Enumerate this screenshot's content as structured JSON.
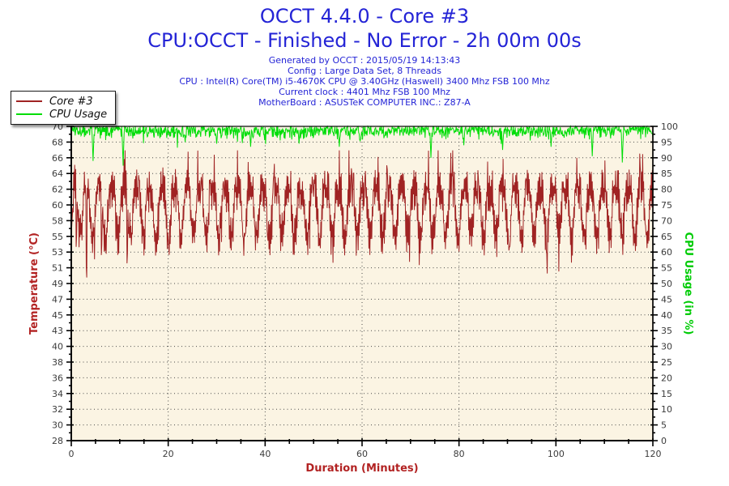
{
  "header": {
    "title": "OCCT 4.4.0 - Core #3",
    "subtitle": "CPU:OCCT - Finished - No Error - 2h 00m 00s",
    "title_color": "#2424d6",
    "info_color": "#2424d6",
    "info_lines": [
      "Generated by OCCT : 2015/05/19 14:13:43",
      "Config : Large Data Set, 8 Threads",
      "CPU : Intel(R) Core(TM) i5-4670K CPU @ 3.40GHz (Haswell) 3400 Mhz FSB 100 Mhz",
      "Current clock : 4401 Mhz FSB 100 Mhz",
      "MotherBoard : ASUSTeK COMPUTER INC.: Z87-A"
    ]
  },
  "legend": {
    "items": [
      {
        "label": "Core #3",
        "color": "#a02323"
      },
      {
        "label": "CPU Usage",
        "color": "#00dd08"
      }
    ]
  },
  "chart_data": {
    "type": "line",
    "plot_background": "#fbf4e3",
    "grid_color": "#4a4a4a",
    "axis_color": "#000000",
    "tick_label_color": "#3b3b3b",
    "duration_minutes": 120,
    "x_axis": {
      "label": "Duration (Minutes)",
      "label_color": "#b22222",
      "min": 0,
      "max": 120,
      "major_ticks": [
        0,
        20,
        40,
        60,
        80,
        100,
        120
      ],
      "tick_labels": [
        "0",
        "20",
        "40",
        "60",
        "80",
        "100",
        "120"
      ],
      "minor_step": 5
    },
    "y_left": {
      "label": "Temperature (°C)",
      "label_color": "#b22222",
      "min": 28,
      "max": 70,
      "tick_labels_top_to_bottom": [
        "70",
        "68",
        "66",
        "64",
        "62",
        "60",
        "58",
        "55",
        "53",
        "51",
        "49",
        "47",
        "45",
        "43",
        "40",
        "38",
        "36",
        "34",
        "32",
        "30",
        "28"
      ]
    },
    "y_right": {
      "label": "CPU Usage (in %)",
      "label_color": "#00cc06",
      "min": 0,
      "max": 100,
      "tick_labels_top_to_bottom": [
        "100",
        "95",
        "90",
        "85",
        "80",
        "75",
        "70",
        "65",
        "60",
        "55",
        "50",
        "45",
        "40",
        "35",
        "30",
        "25",
        "20",
        "15",
        "10",
        "5",
        "0"
      ],
      "minor_step": 2.5
    },
    "series": [
      {
        "name": "Core #3",
        "axis": "left",
        "color": "#a02323",
        "summary": {
          "mean_c": 59.5,
          "typical_high_c": 62,
          "typical_low_c": 54.5,
          "max_c": 66.8,
          "min_c": 49.6
        },
        "pattern": {
          "kind": "cyclic-thermal-load",
          "samples_per_minute": 10,
          "period_min": 2.6,
          "high_level": 61.4,
          "low_level": 55.6,
          "stroke_span": 2.9,
          "spike_add_max": 4.4,
          "spike_prob": 0.09,
          "dip_sub_max": 3.8,
          "dip_prob": 0.05,
          "start_value": 55.5,
          "clamp": [
            49.6,
            66.8
          ],
          "early_dips": [
            {
              "t": 1.0,
              "v": 53.9
            },
            {
              "t": 3.2,
              "v": 49.8
            },
            {
              "t": 6.2,
              "v": 52.8
            },
            {
              "t": 11.5,
              "v": 51.7
            }
          ]
        }
      },
      {
        "name": "CPU Usage",
        "axis": "right",
        "color": "#00dd08",
        "summary": {
          "mean_pct": 98.4,
          "typical_range_pct": [
            96.5,
            100
          ],
          "min_pct": 87.5,
          "max_pct": 100
        },
        "pattern": {
          "kind": "noisy-ceiling",
          "samples_per_minute": 10,
          "base": 100,
          "noise_span": 3.2,
          "small_dip_prob": 0.04,
          "clamp": [
            85,
            100
          ],
          "deep_dips": [
            {
              "t": 4.5,
              "v": 89.0
            },
            {
              "t": 10.7,
              "v": 87.5
            },
            {
              "t": 23.5,
              "v": 95.0
            },
            {
              "t": 30.0,
              "v": 94.5
            },
            {
              "t": 37.0,
              "v": 93.5
            },
            {
              "t": 47.0,
              "v": 94.5
            },
            {
              "t": 55.3,
              "v": 93.5
            },
            {
              "t": 74.2,
              "v": 90.0
            },
            {
              "t": 81.0,
              "v": 94.0
            },
            {
              "t": 89.0,
              "v": 92.5
            },
            {
              "t": 99.0,
              "v": 93.5
            },
            {
              "t": 107.5,
              "v": 90.5
            },
            {
              "t": 113.7,
              "v": 88.5
            }
          ]
        }
      }
    ]
  }
}
